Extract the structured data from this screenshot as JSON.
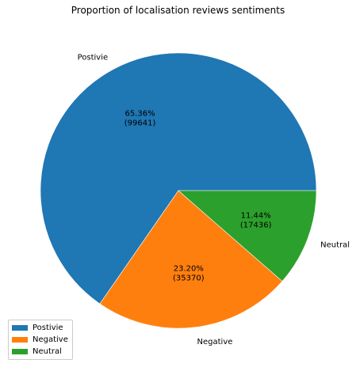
{
  "chart_data": {
    "type": "pie",
    "title": "Proportion of localisation reviews sentiments",
    "categories": [
      "Postivie",
      "Negative",
      "Neutral"
    ],
    "values": [
      99641,
      35370,
      17436
    ],
    "percent_labels": [
      "65.36%",
      "23.20%",
      "11.44%"
    ],
    "count_labels": [
      "(99641)",
      "(35370)",
      "(17436)"
    ],
    "colors": [
      "#1f77b4",
      "#ff7f0e",
      "#2ca02c"
    ],
    "start_angle": "0 degrees (3 o'clock), counter-clockwise",
    "legend": {
      "location": "lower-left",
      "entries": [
        "Postivie",
        "Negative",
        "Neutral"
      ]
    }
  }
}
